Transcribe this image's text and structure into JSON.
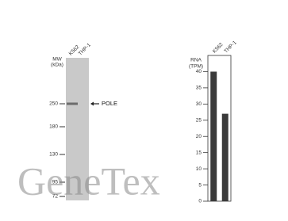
{
  "blot": {
    "mw_label": [
      "MW",
      "(kDa)"
    ],
    "lanes": [
      "K562",
      "THP-1"
    ],
    "markers": [
      250,
      180,
      130,
      95,
      72
    ],
    "band_label": "POLE"
  },
  "watermark": "GeneTex",
  "chart_data": {
    "type": "bar",
    "y_label": [
      "RNA",
      "(TPM)"
    ],
    "categories": [
      "K562",
      "THP-1"
    ],
    "values": [
      40,
      27
    ],
    "color": "#3a3a3a",
    "ylim": [
      0,
      45
    ],
    "yticks": [
      0,
      5,
      10,
      15,
      20,
      25,
      30,
      35,
      40
    ]
  }
}
